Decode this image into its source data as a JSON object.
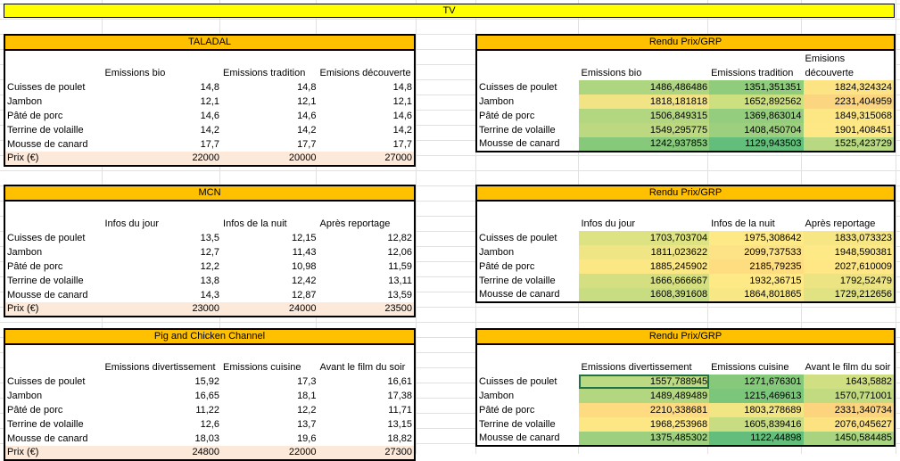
{
  "banner": "TV",
  "left_tables": [
    {
      "title": "TALADAL",
      "columns": [
        "",
        "Emissions bio",
        "Emissions tradition",
        "Emisions découverte"
      ],
      "rows": [
        {
          "label": "Cuisses de poulet",
          "values": [
            "14,8",
            "14,8",
            "14,8"
          ]
        },
        {
          "label": "Jambon",
          "values": [
            "12,1",
            "12,1",
            "12,1"
          ]
        },
        {
          "label": "Pâté de porc",
          "values": [
            "14,6",
            "14,6",
            "14,6"
          ]
        },
        {
          "label": "Terrine de volaille",
          "values": [
            "14,2",
            "14,2",
            "14,2"
          ]
        },
        {
          "label": "Mousse de canard",
          "values": [
            "17,7",
            "17,7",
            "17,7"
          ]
        }
      ],
      "price_label": "Prix (€)",
      "prices": [
        "22000",
        "20000",
        "27000"
      ]
    },
    {
      "title": "MCN",
      "columns": [
        "",
        "Infos du jour",
        "Infos de la nuit",
        "Après reportage"
      ],
      "rows": [
        {
          "label": "Cuisses de poulet",
          "values": [
            "13,5",
            "12,15",
            "12,82"
          ]
        },
        {
          "label": "Jambon",
          "values": [
            "12,7",
            "11,43",
            "12,06"
          ]
        },
        {
          "label": "Pâté de porc",
          "values": [
            "12,2",
            "10,98",
            "11,59"
          ]
        },
        {
          "label": "Terrine de volaille",
          "values": [
            "13,8",
            "12,42",
            "13,11"
          ]
        },
        {
          "label": "Mousse de canard",
          "values": [
            "14,3",
            "12,87",
            "13,59"
          ]
        }
      ],
      "price_label": "Prix (€)",
      "prices": [
        "23000",
        "24000",
        "23500"
      ]
    },
    {
      "title": "Pig and Chicken Channel",
      "columns": [
        "",
        "Emissions divertissement",
        "Emissions cuisine",
        "Avant le film du soir"
      ],
      "rows": [
        {
          "label": "Cuisses de poulet",
          "values": [
            "15,92",
            "17,3",
            "16,61"
          ]
        },
        {
          "label": "Jambon",
          "values": [
            "16,65",
            "18,1",
            "17,38"
          ]
        },
        {
          "label": "Pâté de porc",
          "values": [
            "11,22",
            "12,2",
            "11,71"
          ]
        },
        {
          "label": "Terrine de volaille",
          "values": [
            "12,6",
            "13,7",
            "13,15"
          ]
        },
        {
          "label": "Mousse de canard",
          "values": [
            "18,03",
            "19,6",
            "18,82"
          ]
        }
      ],
      "price_label": "Prix (€)",
      "prices": [
        "24800",
        "22000",
        "27300"
      ]
    }
  ],
  "right_tables": [
    {
      "title": "Rendu Prix/GRP",
      "columns": [
        "",
        "Emissions bio",
        "Emissions tradition",
        "Emisions découverte"
      ],
      "rows": [
        {
          "label": "Cuisses de poulet",
          "values": [
            "1486,486486",
            "1351,351351",
            "1824,324324"
          ],
          "colors": [
            "#aed580",
            "#8fcc7c",
            "#fce383"
          ]
        },
        {
          "label": "Jambon",
          "values": [
            "1818,181818",
            "1652,892562",
            "2231,404959"
          ],
          "colors": [
            "#f2e484",
            "#cde080",
            "#fbd57f"
          ]
        },
        {
          "label": "Pâté de porc",
          "values": [
            "1506,849315",
            "1369,863014",
            "1849,315068"
          ],
          "colors": [
            "#b3d780",
            "#94cd7d",
            "#fde684"
          ]
        },
        {
          "label": "Terrine de volaille",
          "values": [
            "1549,295775",
            "1408,450704",
            "1901,408451"
          ],
          "colors": [
            "#bcd981",
            "#9dd07e",
            "#fee886"
          ]
        },
        {
          "label": "Mousse de canard",
          "values": [
            "1242,937853",
            "1129,943503",
            "1525,423729"
          ],
          "colors": [
            "#86c97b",
            "#63be7b",
            "#b8d881"
          ]
        }
      ]
    },
    {
      "title": "Rendu Prix/GRP",
      "columns": [
        "",
        "Infos du jour",
        "Infos de la nuit",
        "Après reportage"
      ],
      "rows": [
        {
          "label": "Cuisses de poulet",
          "values": [
            "1703,703704",
            "1975,308642",
            "1833,073323"
          ],
          "colors": [
            "#dde282",
            "#fde986",
            "#f6e684"
          ]
        },
        {
          "label": "Jambon",
          "values": [
            "1811,023622",
            "2099,737533",
            "1948,590381"
          ],
          "colors": [
            "#efe584",
            "#fde385",
            "#fde986"
          ]
        },
        {
          "label": "Pâté de porc",
          "values": [
            "1885,245902",
            "2185,79235",
            "2027,610009"
          ],
          "colors": [
            "#fbe885",
            "#fedc80",
            "#fee784"
          ]
        },
        {
          "label": "Terrine de volaille",
          "values": [
            "1666,666667",
            "1932,36715",
            "1792,52479"
          ],
          "colors": [
            "#d4df81",
            "#fde986",
            "#ece483"
          ]
        },
        {
          "label": "Mousse de canard",
          "values": [
            "1608,391608",
            "1864,801865",
            "1729,212656"
          ],
          "colors": [
            "#c8dc81",
            "#f8e785",
            "#e1e282"
          ]
        }
      ]
    },
    {
      "title": "Rendu Prix/GRP",
      "columns": [
        "",
        "Emissions divertissement",
        "Emissions cuisine",
        "Avant le film du soir"
      ],
      "rows": [
        {
          "label": "Cuisses de poulet",
          "values": [
            "1557,788945",
            "1271,676301",
            "1643,5882"
          ],
          "colors": [
            "#bcda81",
            "#86c97b",
            "#cfdf81"
          ]
        },
        {
          "label": "Jambon",
          "values": [
            "1489,489489",
            "1215,469613",
            "1570,771001"
          ],
          "colors": [
            "#b2d780",
            "#7bc67b",
            "#c2db81"
          ]
        },
        {
          "label": "Pâté de porc",
          "values": [
            "2210,338681",
            "1803,278689",
            "2331,340734"
          ],
          "colors": [
            "#fedb80",
            "#f1e584",
            "#fdd47e"
          ]
        },
        {
          "label": "Terrine de volaille",
          "values": [
            "1968,253968",
            "1605,839416",
            "2076,045627"
          ],
          "colors": [
            "#fde784",
            "#c8dd81",
            "#fde282"
          ]
        },
        {
          "label": "Mousse de canard",
          "values": [
            "1375,485302",
            "1122,44898",
            "1450,584485"
          ],
          "colors": [
            "#9dd07e",
            "#63be7b",
            "#a8d47f"
          ]
        }
      ]
    }
  ]
}
